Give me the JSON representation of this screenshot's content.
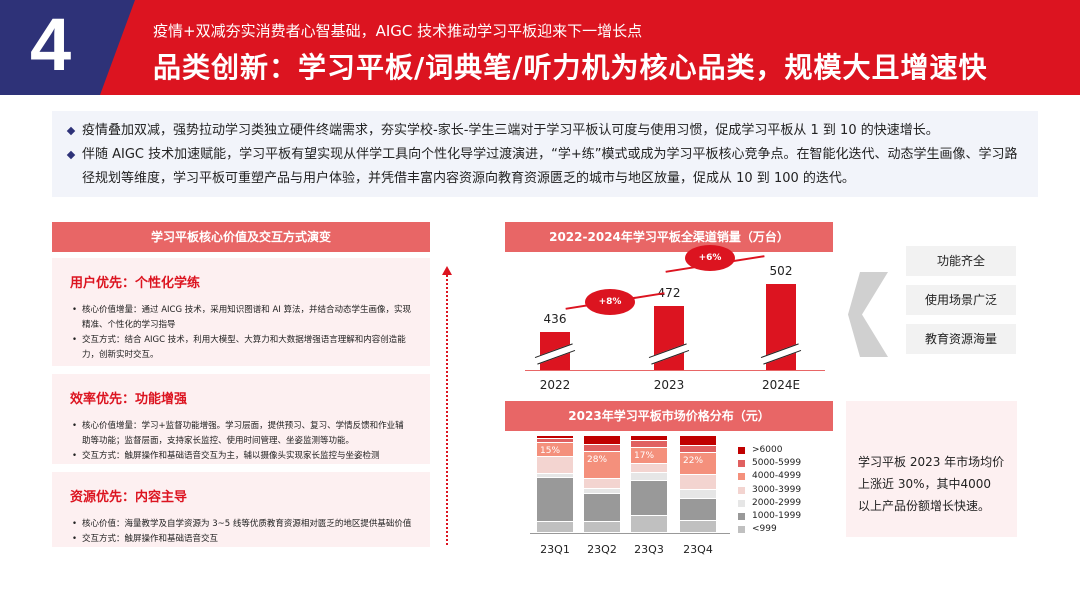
{
  "header": {
    "number": "4",
    "subtitle": "疫情+双减夯实消费者心智基础，AIGC 技术推动学习平板迎来下一增长点",
    "title": "品类创新：学习平板/词典笔/听力机为核心品类，规模大且增速快"
  },
  "intro": [
    "疫情叠加双减，强势拉动学习类独立硬件终端需求，夯实学校-家长-学生三端对于学习平板认可度与使用习惯，促成学习平板从 1 到 10 的快速增长。",
    "伴随 AIGC 技术加速赋能，学习平板有望实现从伴学工具向个性化导学过渡演进，“学+练”模式或成为学习平板核心竞争点。在智能化迭代、动态学生画像、学习路径规划等维度，学习平板可重塑产品与用户体验，并凭借丰富内容资源向教育资源匮乏的城市与地区放量，促成从 10 到 100 的迭代。"
  ],
  "left": {
    "title": "学习平板核心价值及交互方式演变",
    "cards": [
      {
        "heading": "用户优先：个性化学练",
        "items": [
          "核心价值增量：通过 AICG 技术，采用知识图谱和 AI 算法，并结合动态学生画像，实现精准、个性化的学习指导",
          "交互方式：结合 AIGC 技术，利用大模型、大算力和大数据增强语言理解和内容创造能力，创新实时交互。"
        ]
      },
      {
        "heading": "效率优先：功能增强",
        "items": [
          "核心价值增量：学习+监督功能增强。学习层面，提供预习、复习、学情反馈和作业辅助等功能；监督层面，支持家长监控、使用时间管理、坐姿监测等功能。",
          "交互方式：触屏操作和基础语音交互为主，辅以摄像头实现家长监控与坐姿检测"
        ]
      },
      {
        "heading": "资源优先：内容主导",
        "items": [
          "核心价值：海量教学及自学资源为 3~5 线等优质教育资源相对匮乏的地区提供基础价值",
          "交互方式：触屏操作和基础语音交互"
        ]
      }
    ]
  },
  "features": [
    "功能齐全",
    "使用场景广泛",
    "教育资源海量"
  ],
  "note": "学习平板 2023 年市场均价上涨近 30%，其中4000 以上产品份额增长快速。",
  "colors": {
    "red": "#dc1420",
    "navy": "#2e3278",
    "band": "#e86666"
  },
  "chart_data": [
    {
      "type": "bar",
      "title": "2022-2024年学习平板全渠道销量（万台）",
      "categories": [
        "2022",
        "2023",
        "2024E"
      ],
      "values": [
        436,
        472,
        502
      ],
      "growth_labels": [
        "+8%",
        "+6%"
      ],
      "axis_break": true
    },
    {
      "type": "bar",
      "stacked": true,
      "percent": true,
      "title": "2023年学习平板市场价格分布（元）",
      "categories": [
        "23Q1",
        "23Q2",
        "23Q3",
        "23Q4"
      ],
      "series": [
        {
          "name": ">6000",
          "color": "#c00000",
          "values": [
            3,
            9,
            5,
            10
          ]
        },
        {
          "name": "5000-5999",
          "color": "#e06060",
          "values": [
            4,
            7,
            7,
            8
          ]
        },
        {
          "name": "4000-4999",
          "color": "#f4907c",
          "values": [
            15,
            28,
            17,
            22
          ],
          "labels": [
            "15%",
            "28%",
            "17%",
            "22%"
          ]
        },
        {
          "name": "3000-3999",
          "color": "#f3d4d0",
          "values": [
            17,
            11,
            9,
            16
          ]
        },
        {
          "name": "2000-2999",
          "color": "#e6e6e6",
          "values": [
            4,
            5,
            8,
            9
          ]
        },
        {
          "name": "1000-1999",
          "color": "#999999",
          "values": [
            46,
            29,
            36,
            23
          ]
        },
        {
          "name": "<999",
          "color": "#c0c0c0",
          "values": [
            11,
            11,
            18,
            12
          ]
        }
      ]
    }
  ]
}
